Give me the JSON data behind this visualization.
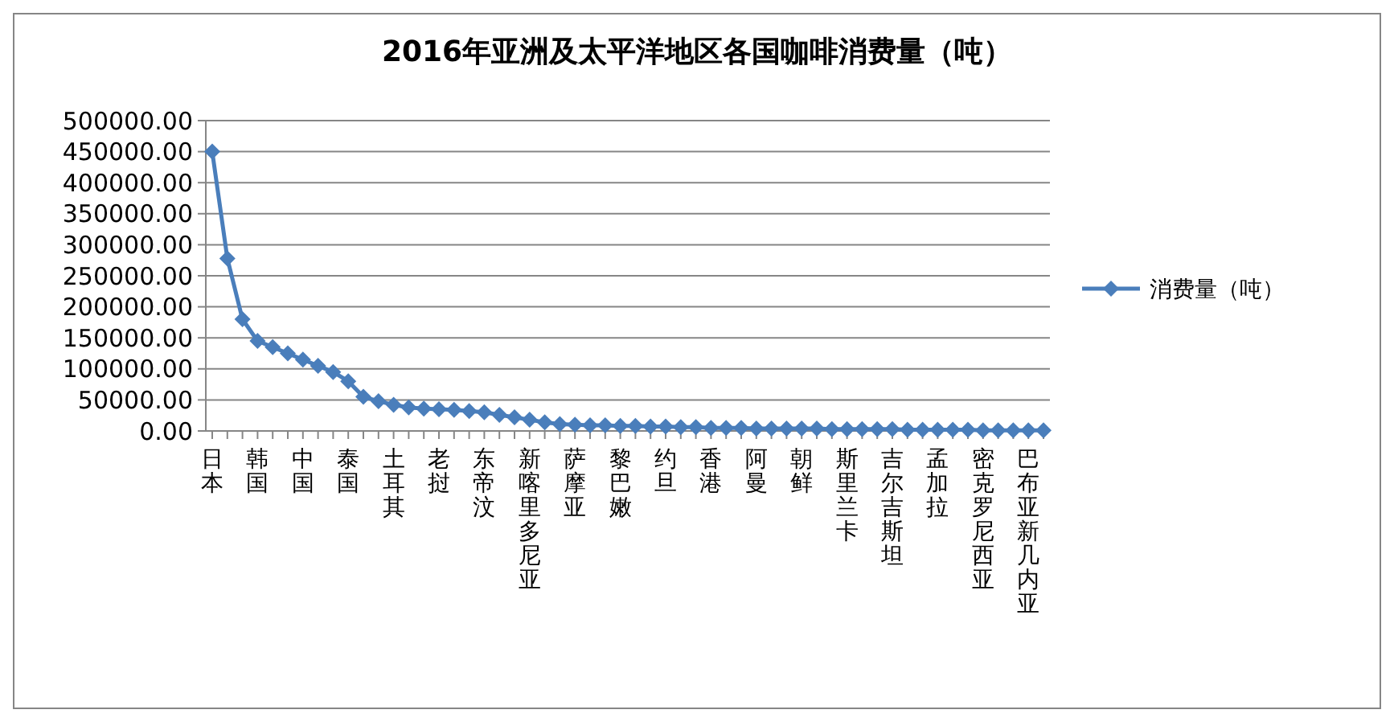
{
  "chart_data": {
    "type": "line",
    "title": "2016年亚洲及太平洋地区各国咖啡消费量（吨）",
    "categories": [
      "日本",
      null,
      null,
      "韩国",
      null,
      null,
      "中国",
      null,
      null,
      "泰国",
      null,
      null,
      "土耳其",
      null,
      null,
      "老挝",
      null,
      null,
      "东帝汶",
      null,
      null,
      "新喀里多尼亚",
      null,
      null,
      "萨摩亚",
      null,
      null,
      "黎巴嫩",
      null,
      null,
      "约旦",
      null,
      null,
      "香港",
      null,
      null,
      "阿曼",
      null,
      null,
      "朝鲜",
      null,
      null,
      "斯里兰卡",
      null,
      null,
      "吉尔吉斯坦",
      null,
      null,
      "孟加拉",
      null,
      null,
      "密克罗尼西亚",
      null,
      null,
      "巴布亚新几内亚",
      null
    ],
    "series": [
      {
        "name": "消费量（吨）",
        "color": "#4a7ebb",
        "values": [
          450000,
          278000,
          180000,
          145000,
          135000,
          125000,
          115000,
          105000,
          95000,
          80000,
          55000,
          48000,
          42000,
          38000,
          36000,
          35000,
          34000,
          32000,
          30000,
          26000,
          22000,
          18000,
          14000,
          11000,
          10000,
          9000,
          9000,
          8000,
          8000,
          7000,
          7000,
          6000,
          6000,
          5000,
          5000,
          5000,
          4000,
          4000,
          4000,
          4000,
          4000,
          3000,
          3000,
          3000,
          3000,
          3000,
          2000,
          2000,
          2000,
          2000,
          2000,
          1000,
          1000,
          1000,
          1000,
          1000
        ]
      }
    ],
    "ylim": [
      0,
      500000
    ],
    "yticks": [
      {
        "value": 0,
        "label": "0.00"
      },
      {
        "value": 50000,
        "label": "50000.00"
      },
      {
        "value": 100000,
        "label": "100000.00"
      },
      {
        "value": 150000,
        "label": "150000.00"
      },
      {
        "value": 200000,
        "label": "200000.00"
      },
      {
        "value": 250000,
        "label": "250000.00"
      },
      {
        "value": 300000,
        "label": "300000.00"
      },
      {
        "value": 350000,
        "label": "350000.00"
      },
      {
        "value": 400000,
        "label": "400000.00"
      },
      {
        "value": 450000,
        "label": "450000.00"
      },
      {
        "value": 500000,
        "label": "500000.00"
      }
    ],
    "grid": "y",
    "legend": "right",
    "marker": "diamond",
    "line_style": "solid"
  }
}
